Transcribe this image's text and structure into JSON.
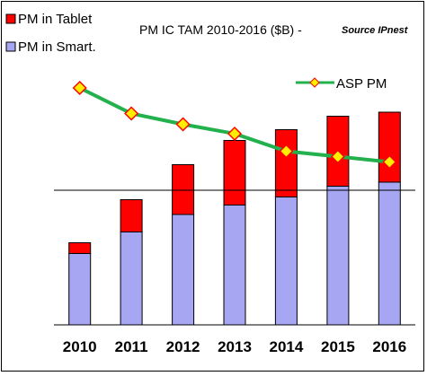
{
  "chart_data": {
    "type": "bar",
    "title": "PM IC TAM 2010-2016 ($B) - ",
    "source_note": "Source IPnest",
    "categories": [
      "2010",
      "2011",
      "2012",
      "2013",
      "2014",
      "2015",
      "2016"
    ],
    "series": [
      {
        "name": "PM in Smart.",
        "color": "#a6a6f2",
        "values": [
          0.53,
          0.69,
          0.82,
          0.89,
          0.95,
          1.03,
          1.06
        ]
      },
      {
        "name": "PM in Tablet",
        "color": "#ff0000",
        "values": [
          0.08,
          0.24,
          0.37,
          0.48,
          0.5,
          0.52,
          0.52
        ]
      }
    ],
    "line_series": {
      "name": "ASP PM",
      "line_color": "#22b14c",
      "marker_color": "#ffee00",
      "marker_edge": "#ff0000",
      "values": [
        1.76,
        1.57,
        1.49,
        1.42,
        1.29,
        1.25,
        1.21
      ]
    },
    "ylim": [
      0,
      2.0
    ],
    "reference_line": 1.0,
    "stacked": true,
    "grid": false,
    "legend_bars": "top-left",
    "legend_line": "top-right"
  }
}
